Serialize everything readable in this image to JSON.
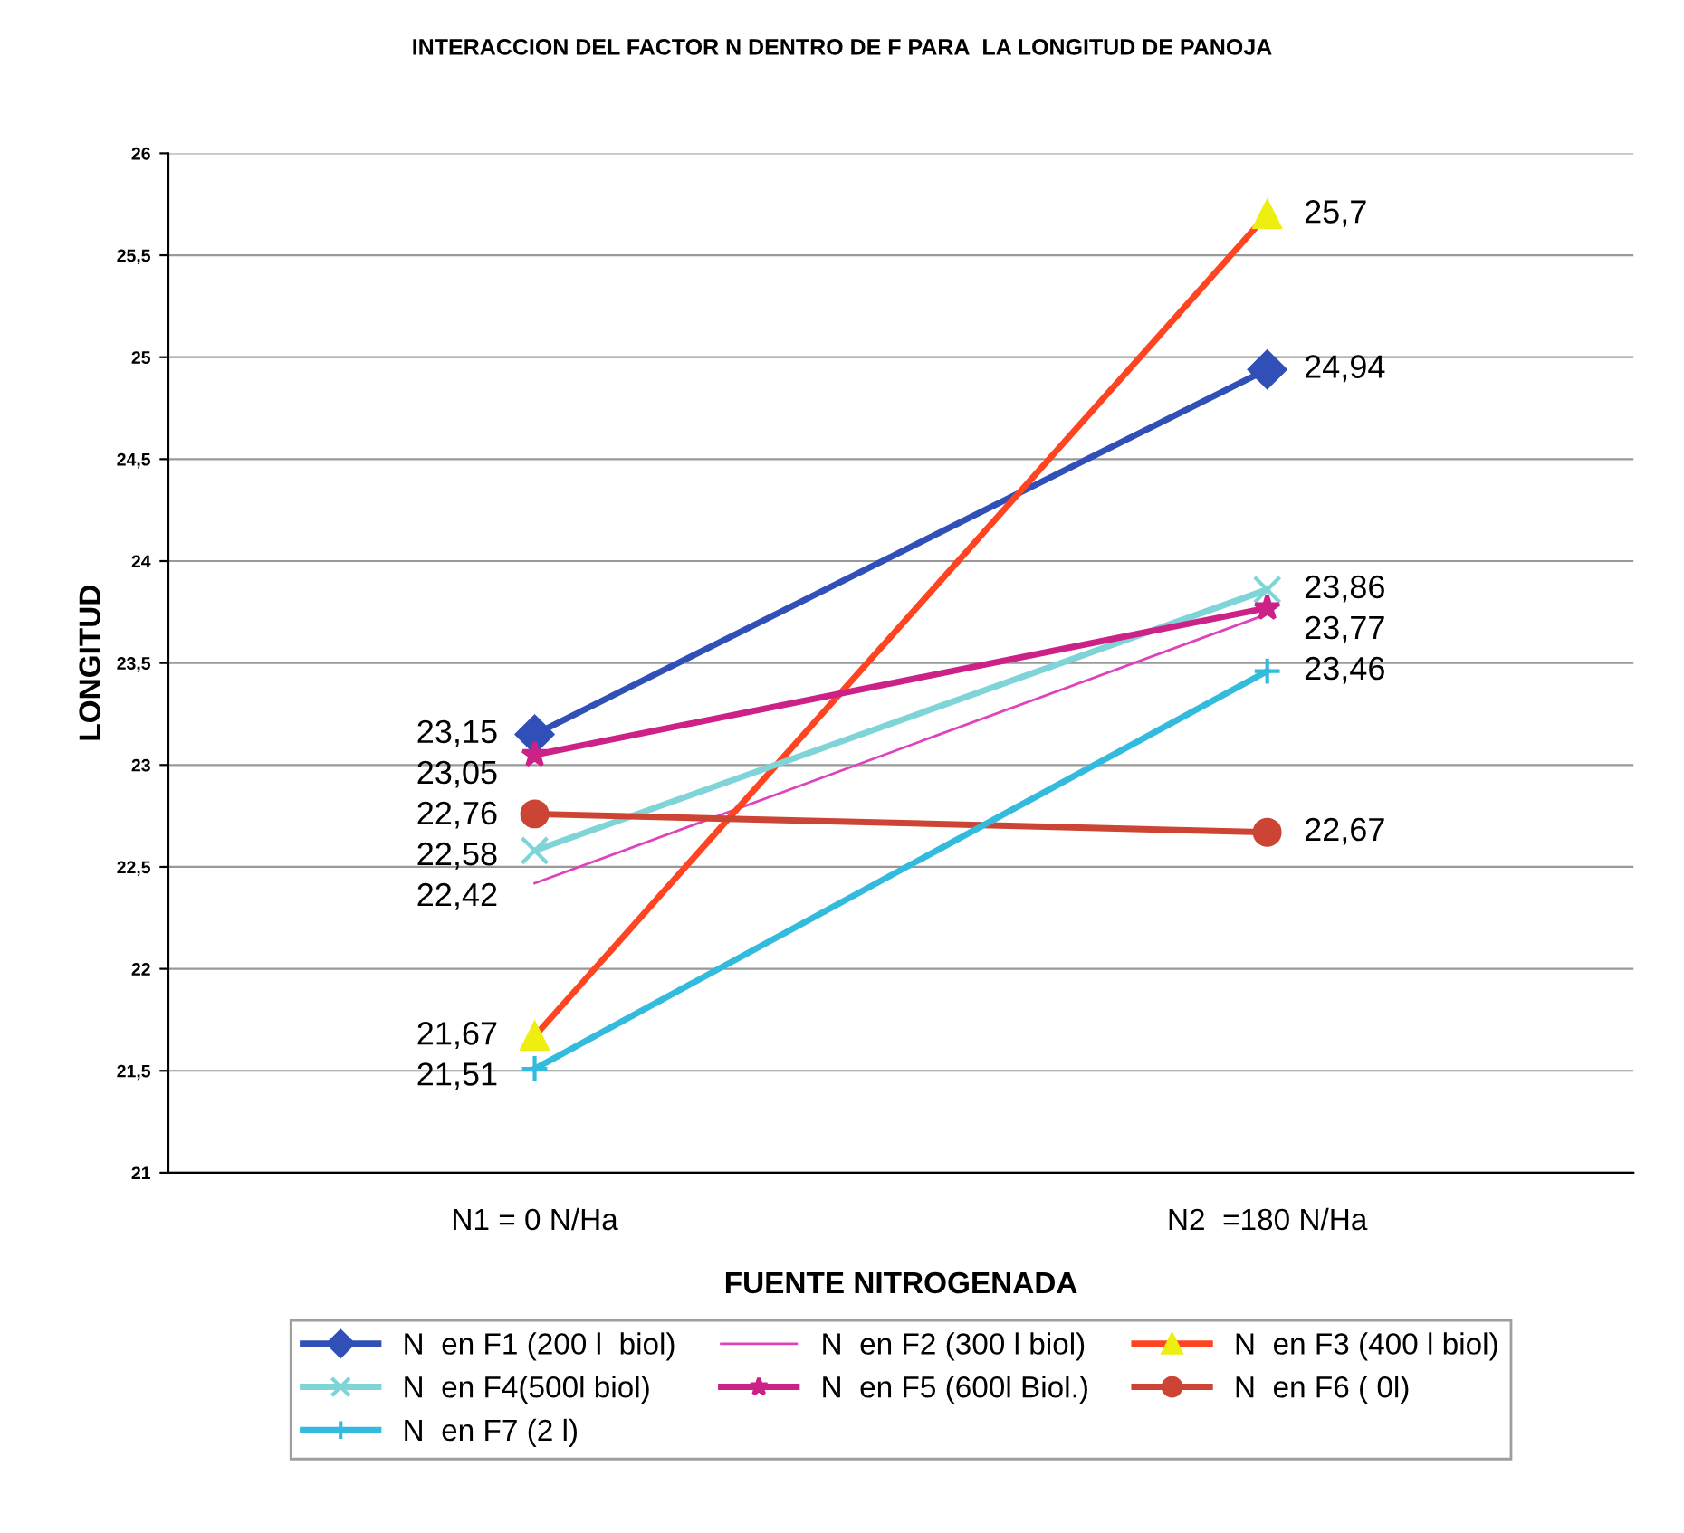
{
  "chart_data": {
    "type": "line",
    "title": "INTERACCION DEL FACTOR N DENTRO DE F PARA  LA LONGITUD DE PANOJA",
    "xlabel": "FUENTE NITROGENADA",
    "ylabel": "LONGITUD",
    "categories": [
      "N1 = 0 N/Ha",
      "N2  =180 N/Ha"
    ],
    "ylim": [
      21,
      26
    ],
    "yticks": [
      21,
      {
        "value": 21.5,
        "label": "21,5"
      },
      22,
      {
        "value": 22.5,
        "label": "22,5"
      },
      23,
      {
        "value": 23.5,
        "label": "23,5"
      },
      24,
      {
        "value": 24.5,
        "label": "24,5"
      },
      25,
      {
        "value": 25.5,
        "label": "25,5"
      },
      26
    ],
    "grid": "y",
    "legend": "bottom",
    "series": [
      {
        "name": "N  en F1 (200 l  biol)",
        "color": "#3050b8",
        "marker": "diamond",
        "values": [
          23.15,
          24.94
        ],
        "value_labels": [
          "23,15",
          "24,94"
        ]
      },
      {
        "name": "N  en F2 (300 l biol)",
        "color": "#dd44bb",
        "marker": "none",
        "values": [
          22.42,
          23.74
        ],
        "value_labels": [
          "22,42",
          null
        ]
      },
      {
        "name": "N  en F3 (400 l biol)",
        "color": "#ff4422",
        "marker": "triangle",
        "colors": [
          "#eeee11",
          "#eeee11"
        ],
        "values": [
          21.67,
          25.7
        ],
        "value_labels": [
          "21,67",
          "25,7"
        ]
      },
      {
        "name": "N  en F4(500l biol)",
        "color": "#7fd4d8",
        "marker": "x",
        "values": [
          22.58,
          23.86
        ],
        "value_labels": [
          "22,58",
          "23,86"
        ]
      },
      {
        "name": "N  en F5 (600l Biol.)",
        "color": "#cc2288",
        "marker": "star",
        "values": [
          23.05,
          23.77
        ],
        "value_labels": [
          "23,05",
          "23,77"
        ]
      },
      {
        "name": "N  en F6 ( 0l)",
        "color": "#cc4433",
        "marker": "circle",
        "values": [
          22.76,
          22.67
        ],
        "value_labels": [
          "22,76",
          "22,67"
        ]
      },
      {
        "name": "N  en F7 (2 l)",
        "color": "#33bbdd",
        "marker": "cross",
        "values": [
          21.51,
          23.46
        ],
        "value_labels": [
          "21,51",
          "23,46"
        ]
      }
    ]
  }
}
